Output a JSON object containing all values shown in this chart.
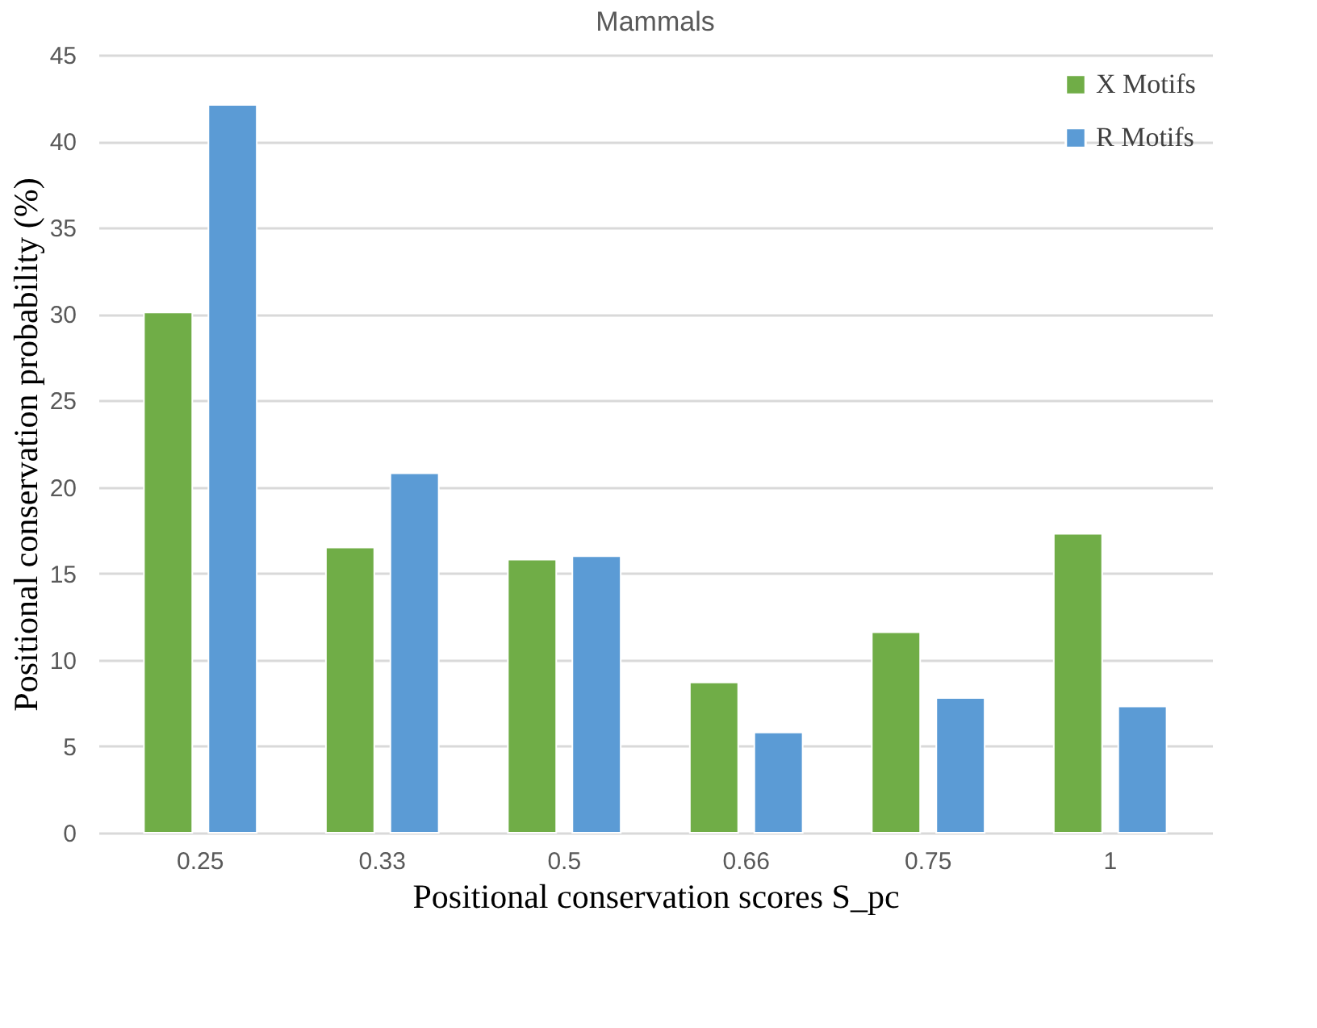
{
  "chart_data": {
    "type": "bar",
    "title": "Mammals",
    "xlabel": "Positional conservation scores S_pc",
    "ylabel": "Positional conservation probability (%)",
    "categories": [
      "0.25",
      "0.33",
      "0.5",
      "0.66",
      "0.75",
      "1"
    ],
    "series": [
      {
        "name": "X Motifs",
        "color": "#70ad47",
        "values": [
          30.1,
          16.5,
          15.8,
          8.7,
          11.6,
          17.3
        ]
      },
      {
        "name": "R Motifs",
        "color": "#5b9bd5",
        "values": [
          42.1,
          20.8,
          16.0,
          5.8,
          7.8,
          7.3
        ]
      }
    ],
    "ylim": [
      0,
      45
    ],
    "yticks": [
      0,
      5,
      10,
      15,
      20,
      25,
      30,
      35,
      40,
      45
    ],
    "grid": "y",
    "legend": "top right"
  }
}
